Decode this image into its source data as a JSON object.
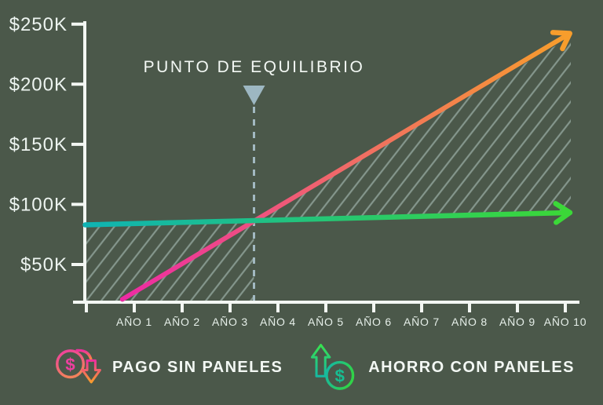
{
  "title": "PUNTO DE EQUILIBRIO",
  "colors": {
    "background": "#4b584a",
    "axis": "#f3f7f3",
    "text": "#f3f8f4",
    "hatch": "rgba(190,212,206,0.5)",
    "break_even_dash": "#a7bfc8",
    "break_even_triangle": "#9db7c2",
    "pago_gradient": [
      "#ed2aa4",
      "#f06a68",
      "#f79d2c"
    ],
    "ahorro_gradient": [
      "#0fb3b3",
      "#3bd838"
    ]
  },
  "legend": {
    "items": [
      {
        "label": "PAGO SIN PANELES",
        "symbol": "$",
        "icon": "dollar-coin-down-arrow-icon"
      },
      {
        "label": "AHORRO CON PANELES",
        "symbol": "$",
        "icon": "dollar-coin-up-arrow-icon"
      }
    ]
  },
  "chart_data": {
    "type": "line",
    "title": "PUNTO DE EQUILIBRIO",
    "x_tick_labels": [
      "AÑO 1",
      "AÑO 2",
      "AÑO 3",
      "AÑO 4",
      "AÑO 5",
      "AÑO 6",
      "AÑO 7",
      "AÑO 8",
      "AÑO 9",
      "AÑO 10"
    ],
    "y_tick_labels": [
      "$50K",
      "$100K",
      "$150K",
      "$200K",
      "$250K"
    ],
    "y_tick_values": [
      50000,
      100000,
      150000,
      200000,
      250000
    ],
    "x_range_years": [
      0,
      10
    ],
    "ylim": [
      0,
      260000
    ],
    "grid": false,
    "legend_position": "bottom",
    "series": [
      {
        "name": "PAGO SIN PANELES",
        "points": [
          [
            0.75,
            21000
          ],
          [
            10,
            240000
          ]
        ],
        "gradient": [
          "#ed2aa4",
          "#f06a68",
          "#f79d2c"
        ]
      },
      {
        "name": "AHORRO CON PANELES",
        "points": [
          [
            0,
            83000
          ],
          [
            10,
            93000
          ]
        ],
        "gradient": [
          "#0fb3b3",
          "#3bd838"
        ]
      }
    ],
    "break_even": {
      "label": "PUNTO DE EQUILIBRIO",
      "year": 3.5,
      "value": 86500
    },
    "shaded_hatch": true
  }
}
